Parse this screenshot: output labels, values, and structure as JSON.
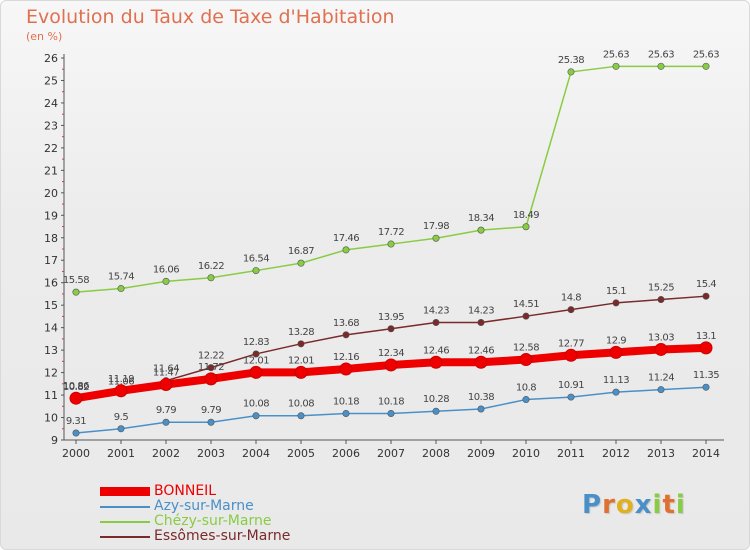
{
  "chart_data": {
    "type": "line",
    "title": "Evolution du Taux de Taxe d'Habitation",
    "ylabel": "(en %)",
    "ylim": [
      9,
      26
    ],
    "yticks": [
      "9",
      "10",
      "11",
      "12",
      "13",
      "14",
      "15",
      "16",
      "17",
      "18",
      "19",
      "20",
      "21",
      "22",
      "23",
      "24",
      "25",
      "26"
    ],
    "x": [
      "2000",
      "2001",
      "2002",
      "2003",
      "2004",
      "2005",
      "2006",
      "2007",
      "2008",
      "2009",
      "2010",
      "2011",
      "2012",
      "2013",
      "2014"
    ],
    "series": [
      {
        "name": "Chézy-sur-Marne",
        "color": "#88cc44",
        "values": [
          15.58,
          15.74,
          16.06,
          16.22,
          16.54,
          16.87,
          17.46,
          17.72,
          17.98,
          18.34,
          18.49,
          25.38,
          25.63,
          25.63,
          25.63
        ],
        "labels": [
          "15.58",
          "15.74",
          "16.06",
          "16.22",
          "16.54",
          "16.87",
          "17.46",
          "17.72",
          "17.98",
          "18.34",
          "18.49",
          "25.38",
          "25.63",
          "25.63",
          "25.63"
        ]
      },
      {
        "name": "Essômes-sur-Marne",
        "color": "#7a2a2a",
        "values": [
          10.82,
          11.06,
          11.64,
          12.22,
          12.83,
          13.28,
          13.68,
          13.95,
          14.23,
          14.23,
          14.51,
          14.8,
          15.1,
          15.25,
          15.4
        ],
        "labels": [
          "10.82",
          "11.06",
          "11.64",
          "12.22",
          "12.83",
          "13.28",
          "13.68",
          "13.95",
          "14.23",
          "14.23",
          "14.51",
          "14.8",
          "15.1",
          "15.25",
          "15.4"
        ]
      },
      {
        "name": "Azy-sur-Marne",
        "color": "#4a90c8",
        "values": [
          9.31,
          9.5,
          9.79,
          9.79,
          10.08,
          10.08,
          10.18,
          10.18,
          10.28,
          10.38,
          10.8,
          10.91,
          11.13,
          11.24,
          11.35
        ],
        "labels": [
          "9.31",
          "9.5",
          "9.79",
          "9.79",
          "10.08",
          "10.08",
          "10.18",
          "10.18",
          "10.28",
          "10.38",
          "10.8",
          "10.91",
          "11.13",
          "11.24",
          "11.35"
        ]
      },
      {
        "name": "BONNEIL",
        "color": "#ee0000",
        "values": [
          10.86,
          11.19,
          11.47,
          11.72,
          12.01,
          12.01,
          12.16,
          12.34,
          12.46,
          12.46,
          12.58,
          12.77,
          12.9,
          13.03,
          13.1
        ],
        "labels": [
          "10.86",
          "11.19",
          "11.47",
          "11.72",
          "12.01",
          "12.01",
          "12.16",
          "12.34",
          "12.46",
          "12.46",
          "12.58",
          "12.77",
          "12.9",
          "13.03",
          "13.1"
        ]
      }
    ],
    "legend_order": [
      3,
      2,
      0,
      1
    ],
    "legend_position": "bottom-left",
    "grid": false
  },
  "legend": {
    "items": [
      {
        "label": "BONNEIL",
        "color": "#ee0000"
      },
      {
        "label": "Azy-sur-Marne",
        "color": "#4a90c8"
      },
      {
        "label": "Chézy-sur-Marne",
        "color": "#88cc44"
      },
      {
        "label": "Essômes-sur-Marne",
        "color": "#7a2a2a"
      }
    ]
  },
  "logo": {
    "letters": [
      "P",
      "r",
      "o",
      "x",
      "i",
      "t",
      "i"
    ],
    "colors": [
      "#4a90c8",
      "#e07030",
      "#e0b020",
      "#4a90c8",
      "#88cc44",
      "#e07030",
      "#88cc44"
    ]
  },
  "title_color": "#e07050"
}
